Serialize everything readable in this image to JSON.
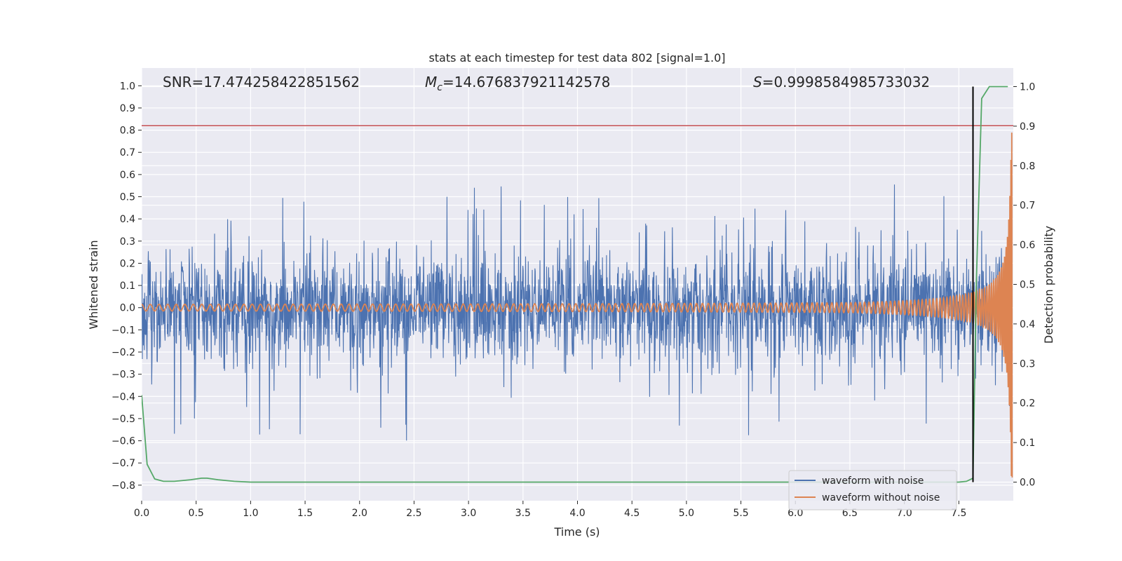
{
  "chart_data": {
    "type": "line",
    "title": "stats at each timestep for test data 802 [signal=1.0]",
    "xlabel": "Time (s)",
    "ylabel": "Whitened strain",
    "y2label": "Detection probability",
    "xlim": [
      0.0,
      8.0
    ],
    "ylim": [
      -0.87,
      1.08
    ],
    "y2lim": [
      -0.047,
      1.047
    ],
    "x_ticks": [
      "0.0",
      "0.5",
      "1.0",
      "1.5",
      "2.0",
      "2.5",
      "3.0",
      "3.5",
      "4.0",
      "4.5",
      "5.0",
      "5.5",
      "6.0",
      "6.5",
      "7.0",
      "7.5"
    ],
    "y_ticks": [
      "1.0",
      "0.9",
      "0.8",
      "0.7",
      "0.6",
      "0.5",
      "0.4",
      "0.3",
      "0.2",
      "0.1",
      "0.0",
      "−0.1",
      "−0.2",
      "−0.3",
      "−0.4",
      "−0.5",
      "−0.6",
      "−0.7",
      "−0.8"
    ],
    "y2_ticks": [
      "1.0",
      "0.9",
      "0.8",
      "0.7",
      "0.6",
      "0.5",
      "0.4",
      "0.3",
      "0.2",
      "0.1",
      "0.0"
    ],
    "grid": true,
    "legend_position": "bottom-right",
    "annotations": {
      "snr": "SNR=17.474258422851562",
      "mc_symbol": "M",
      "mc_sub": "c",
      "mc_value": "=14.676837921142578",
      "s_symbol": "S",
      "s_value": "=0.9998584985733032"
    },
    "threshold_line": {
      "y": 0.82,
      "color": "#c44e52"
    },
    "detection_marker_x": 7.63,
    "series": [
      {
        "name": "waveform with noise",
        "color": "#4c72b0",
        "kind": "noise",
        "envelope_sigma": 0.12,
        "peak_min": -0.6,
        "peak_max": 0.6
      },
      {
        "name": "waveform without noise",
        "color": "#dd8452",
        "kind": "chirp",
        "start_amplitude": 0.015,
        "end_amplitude": 0.8,
        "merger_time": 8.0
      },
      {
        "name": "",
        "color": "#55a868",
        "axis": "right",
        "kind": "probability",
        "x": [
          0.0,
          0.05,
          0.12,
          0.2,
          0.3,
          0.45,
          0.55,
          0.6,
          0.7,
          0.85,
          1.0,
          7.5,
          7.57,
          7.63,
          7.66,
          7.71,
          7.78,
          7.9,
          7.95
        ],
        "y": [
          0.22,
          0.045,
          0.008,
          0.002,
          0.002,
          0.006,
          0.01,
          0.01,
          0.006,
          0.002,
          0.0,
          0.0,
          0.002,
          0.01,
          0.5,
          0.97,
          1.0,
          1.0,
          1.0
        ]
      }
    ],
    "colors": {
      "background": "#eaeaf2",
      "grid": "#ffffff",
      "marker": "#000000"
    }
  }
}
